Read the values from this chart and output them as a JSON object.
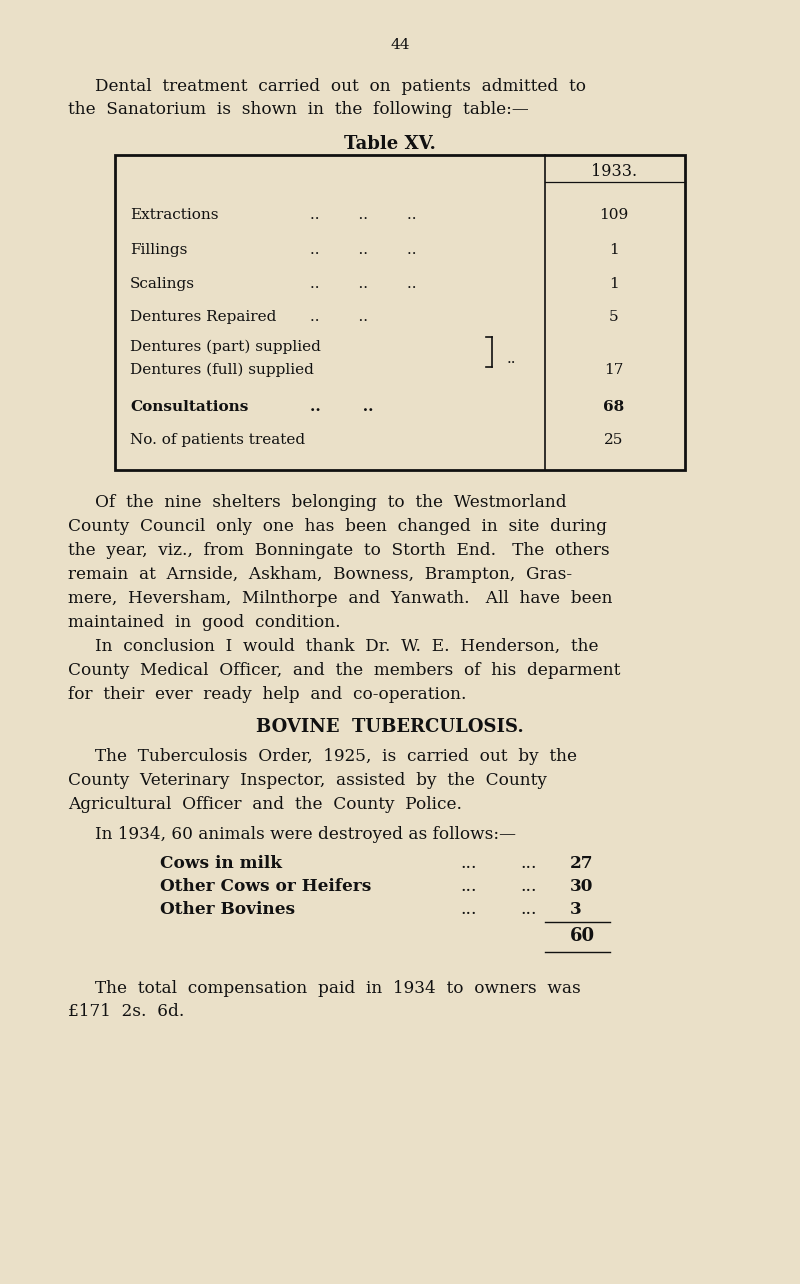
{
  "page_number": "44",
  "bg_color": "#EAE0C8",
  "text_color": "#111111",
  "intro_line1": "Dental  treatment  carried  out  on  patients  admitted  to",
  "intro_line2": "the  Sanatorium  is  shown  in  the  following  table:—",
  "table_title": "Table XV.",
  "table_col_header": "1933.",
  "para1_lines": [
    "Of  the  nine  shelters  belonging  to  the  Westmorland",
    "County  Council  only  one  has  been  changed  in  site  during",
    "the  year,  viz.,  from  Bonningate  to  Storth  End.   The  others",
    "remain  at  Arnside,  Askham,  Bowness,  Brampton,  Gras-",
    "mere,  Heversham,  Milnthorpe  and  Yanwath.   All  have  been",
    "maintained  in  good  condition."
  ],
  "para2_lines": [
    "In  conclusion  I  would  thank  Dr.  W.  E.  Henderson,  the",
    "County  Medical  Officer,  and  the  members  of  his  deparment",
    "for  their  ever  ready  help  and  co-operation."
  ],
  "section_title": "BOVINE  TUBERCULOSIS.",
  "para3_lines": [
    "The  Tuberculosis  Order,  1925,  is  carried  out  by  the",
    "County  Veterinary  Inspector,  assisted  by  the  County",
    "Agricultural  Officer  and  the  County  Police."
  ],
  "animals_intro": "In 1934, 60 animals were destroyed as follows:—",
  "animals_total": "60",
  "final_line1": "The  total  compensation  paid  in  1934  to  owners  was",
  "final_line2": "£171  2s.  6d."
}
